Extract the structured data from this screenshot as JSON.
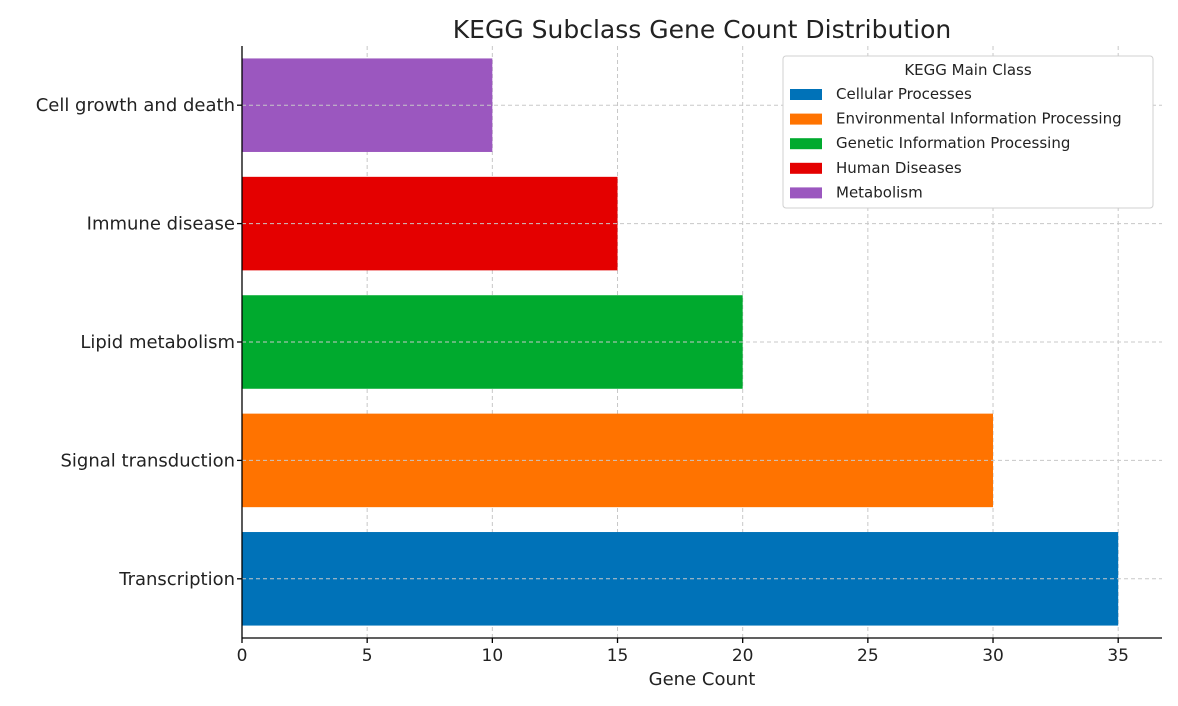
{
  "chart_data": {
    "type": "bar",
    "orientation": "horizontal",
    "title": "KEGG Subclass Gene Count Distribution",
    "xlabel": "Gene Count",
    "ylabel": "",
    "xlim": [
      0,
      36.75
    ],
    "xticks": [
      0,
      5,
      10,
      15,
      20,
      25,
      30,
      35
    ],
    "grid": true,
    "categories": [
      "Transcription",
      "Signal transduction",
      "Lipid metabolism",
      "Immune disease",
      "Cell growth and death"
    ],
    "values": [
      35,
      30,
      20,
      15,
      10
    ],
    "bar_classes": [
      "Cellular Processes",
      "Environmental Information Processing",
      "Genetic Information Processing",
      "Human Diseases",
      "Metabolism"
    ],
    "legend": {
      "title": "KEGG Main Class",
      "placement": "top-right",
      "entries": [
        {
          "label": "Cellular Processes",
          "color": "#0072b8"
        },
        {
          "label": "Environmental Information Processing",
          "color": "#ff7300"
        },
        {
          "label": "Genetic Information Processing",
          "color": "#00aa2e"
        },
        {
          "label": "Human Diseases",
          "color": "#e40000"
        },
        {
          "label": "Metabolism",
          "color": "#9b57bf"
        }
      ]
    }
  }
}
